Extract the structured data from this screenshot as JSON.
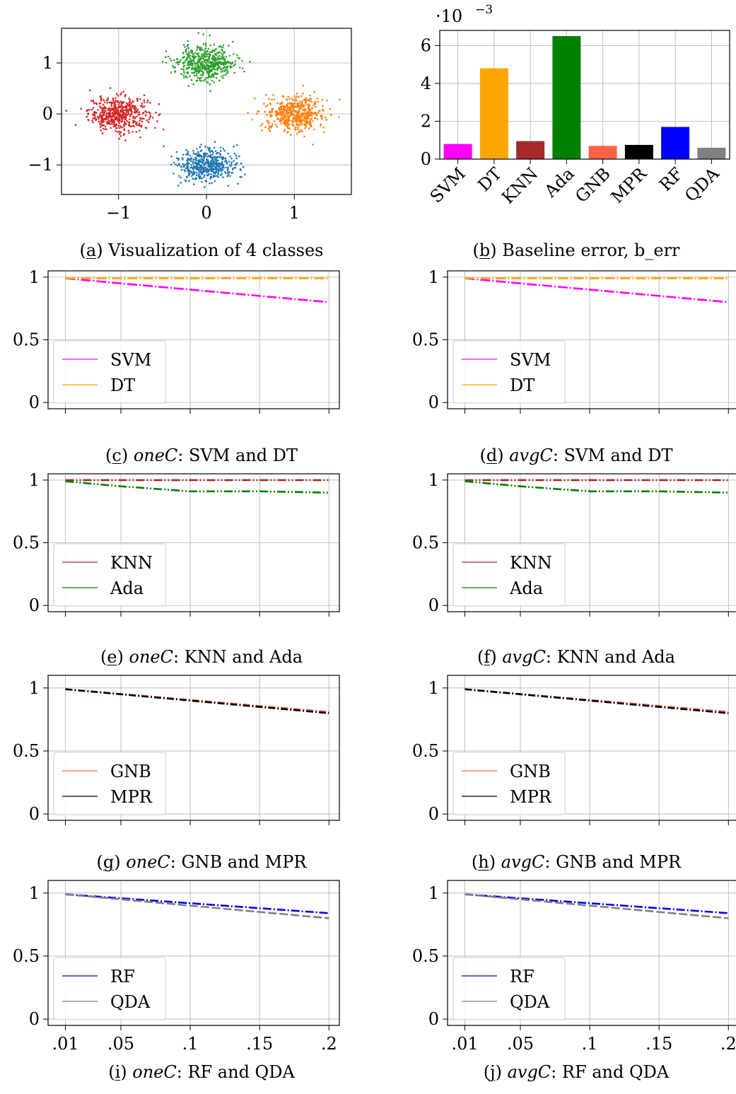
{
  "figure": {
    "captions": [
      {
        "letter": "a",
        "lead": "",
        "rest": "Visualization of 4 classes"
      },
      {
        "letter": "b",
        "lead": "",
        "rest": "Baseline error, b_err"
      },
      {
        "letter": "c",
        "lead": "oneC",
        "rest": ": SVM and DT"
      },
      {
        "letter": "d",
        "lead": "avgC",
        "rest": ": SVM and DT"
      },
      {
        "letter": "e",
        "lead": "oneC",
        "rest": ": KNN and Ada"
      },
      {
        "letter": "f",
        "lead": "avgC",
        "rest": ": KNN and Ada"
      },
      {
        "letter": "g",
        "lead": "oneC",
        "rest": ": GNB and MPR"
      },
      {
        "letter": "h",
        "lead": "avgC",
        "rest": ": GNB and MPR"
      },
      {
        "letter": "i",
        "lead": "oneC",
        "rest": ": RF and QDA"
      },
      {
        "letter": "j",
        "lead": "avgC",
        "rest": ": RF and QDA"
      }
    ]
  },
  "colors": {
    "red": "#d62728",
    "orange": "#ff7f0e",
    "green": "#2ca02c",
    "blue": "#1f77b4",
    "SVM": "#ff00ff",
    "DT": "#ffa500",
    "KNN": "#a52a2a",
    "Ada": "#008000",
    "GNB": "#ff6347",
    "MPR": "#000000",
    "RF": "#0000ff",
    "QDA": "#808080",
    "grid": "#b0b0b0"
  },
  "chart_data": [
    {
      "id": "a",
      "type": "scatter",
      "xlim": [
        -1.65,
        1.65
      ],
      "ylim": [
        -1.58,
        1.68
      ],
      "xticks": [
        {
          "v": -1,
          "label": "−1"
        },
        {
          "v": 0,
          "label": "0"
        },
        {
          "v": 1,
          "label": "1"
        }
      ],
      "yticks": [
        {
          "v": -1,
          "label": "−1"
        },
        {
          "v": 0,
          "label": "0"
        },
        {
          "v": 1,
          "label": "1"
        }
      ],
      "grid": true,
      "clusters": [
        {
          "color": "red",
          "center": [
            -1,
            0
          ],
          "spread": [
            0.17,
            0.17
          ],
          "n": 500
        },
        {
          "color": "orange",
          "center": [
            1,
            0
          ],
          "spread": [
            0.17,
            0.17
          ],
          "n": 500
        },
        {
          "color": "green",
          "center": [
            0,
            1
          ],
          "spread": [
            0.17,
            0.17
          ],
          "n": 500
        },
        {
          "color": "blue",
          "center": [
            0,
            -1
          ],
          "spread": [
            0.17,
            0.17
          ],
          "n": 500
        }
      ]
    },
    {
      "id": "b",
      "type": "bar",
      "scale_label": "·10",
      "scale_exp": "−3",
      "categories": [
        "SVM",
        "DT",
        "KNN",
        "Ada",
        "GNB",
        "MPR",
        "RF",
        "QDA"
      ],
      "values": [
        0.8,
        4.8,
        0.95,
        6.5,
        0.7,
        0.75,
        1.7,
        0.6
      ],
      "ylim": [
        0,
        6.8
      ],
      "yticks": [
        {
          "v": 0,
          "label": "0"
        },
        {
          "v": 2,
          "label": "2"
        },
        {
          "v": 4,
          "label": "4"
        },
        {
          "v": 6,
          "label": "6"
        }
      ],
      "grid": true
    },
    {
      "id": "c",
      "type": "line",
      "xlim": [
        -0.0025,
        0.2075
      ],
      "ylim": [
        -0.05,
        1.05
      ],
      "xticks": [
        {
          "v": 0.01,
          "label": ".01"
        },
        {
          "v": 0.05,
          "label": ".05"
        },
        {
          "v": 0.1,
          "label": ".1"
        },
        {
          "v": 0.15,
          "label": ".15"
        },
        {
          "v": 0.2,
          "label": ".2"
        }
      ],
      "show_xtick_labels": false,
      "yticks": [
        {
          "v": 0,
          "label": "0"
        },
        {
          "v": 0.5,
          "label": "0.5"
        },
        {
          "v": 1,
          "label": "1"
        }
      ],
      "grid": true,
      "legend": "lower-left",
      "x": [
        0.01,
        0.2
      ],
      "series": [
        {
          "name": "SVM",
          "values": [
            0.99,
            0.8
          ]
        },
        {
          "name": "DT",
          "values": [
            0.99,
            0.99
          ]
        }
      ]
    },
    {
      "id": "d",
      "type": "line",
      "xlim": [
        -0.0025,
        0.2075
      ],
      "ylim": [
        -0.05,
        1.05
      ],
      "xticks": [
        {
          "v": 0.01,
          "label": ".01"
        },
        {
          "v": 0.05,
          "label": ".05"
        },
        {
          "v": 0.1,
          "label": ".1"
        },
        {
          "v": 0.15,
          "label": ".15"
        },
        {
          "v": 0.2,
          "label": ".2"
        }
      ],
      "show_xtick_labels": false,
      "yticks": [
        {
          "v": 0,
          "label": "0"
        },
        {
          "v": 0.5,
          "label": "0.5"
        },
        {
          "v": 1,
          "label": "1"
        }
      ],
      "grid": true,
      "legend": "lower-left",
      "x": [
        0.01,
        0.2
      ],
      "series": [
        {
          "name": "SVM",
          "values": [
            0.99,
            0.8
          ]
        },
        {
          "name": "DT",
          "values": [
            0.99,
            0.99
          ]
        }
      ]
    },
    {
      "id": "e",
      "type": "line",
      "xlim": [
        -0.0025,
        0.2075
      ],
      "ylim": [
        -0.05,
        1.05
      ],
      "xticks": [
        {
          "v": 0.01,
          "label": ".01"
        },
        {
          "v": 0.05,
          "label": ".05"
        },
        {
          "v": 0.1,
          "label": ".1"
        },
        {
          "v": 0.15,
          "label": ".15"
        },
        {
          "v": 0.2,
          "label": ".2"
        }
      ],
      "show_xtick_labels": false,
      "yticks": [
        {
          "v": 0,
          "label": "0"
        },
        {
          "v": 0.5,
          "label": "0.5"
        },
        {
          "v": 1,
          "label": "1"
        }
      ],
      "grid": true,
      "legend": "lower-left",
      "x": [
        0.01,
        0.05,
        0.1,
        0.15,
        0.2
      ],
      "series": [
        {
          "name": "KNN",
          "values": [
            1.0,
            1.0,
            1.0,
            1.0,
            1.0
          ]
        },
        {
          "name": "Ada",
          "values": [
            0.99,
            0.95,
            0.91,
            0.91,
            0.9
          ]
        }
      ]
    },
    {
      "id": "f",
      "type": "line",
      "xlim": [
        -0.0025,
        0.2075
      ],
      "ylim": [
        -0.05,
        1.05
      ],
      "xticks": [
        {
          "v": 0.01,
          "label": ".01"
        },
        {
          "v": 0.05,
          "label": ".05"
        },
        {
          "v": 0.1,
          "label": ".1"
        },
        {
          "v": 0.15,
          "label": ".15"
        },
        {
          "v": 0.2,
          "label": ".2"
        }
      ],
      "show_xtick_labels": false,
      "yticks": [
        {
          "v": 0,
          "label": "0"
        },
        {
          "v": 0.5,
          "label": "0.5"
        },
        {
          "v": 1,
          "label": "1"
        }
      ],
      "grid": true,
      "legend": "lower-left",
      "x": [
        0.01,
        0.05,
        0.1,
        0.15,
        0.2
      ],
      "series": [
        {
          "name": "KNN",
          "values": [
            1.0,
            1.0,
            1.0,
            1.0,
            1.0
          ]
        },
        {
          "name": "Ada",
          "values": [
            0.99,
            0.95,
            0.91,
            0.91,
            0.9
          ]
        }
      ]
    },
    {
      "id": "g",
      "type": "line",
      "xlim": [
        -0.0025,
        0.2075
      ],
      "ylim": [
        -0.05,
        1.1
      ],
      "xticks": [
        {
          "v": 0.01,
          "label": ".01"
        },
        {
          "v": 0.05,
          "label": ".05"
        },
        {
          "v": 0.1,
          "label": ".1"
        },
        {
          "v": 0.15,
          "label": ".15"
        },
        {
          "v": 0.2,
          "label": ".2"
        }
      ],
      "show_xtick_labels": false,
      "yticks": [
        {
          "v": 0,
          "label": "0"
        },
        {
          "v": 0.5,
          "label": "0.5"
        },
        {
          "v": 1,
          "label": "1"
        }
      ],
      "grid": true,
      "legend": "lower-left",
      "x": [
        0.01,
        0.2
      ],
      "series": [
        {
          "name": "GNB",
          "values": [
            0.99,
            0.81
          ]
        },
        {
          "name": "MPR",
          "values": [
            0.99,
            0.8
          ]
        }
      ]
    },
    {
      "id": "h",
      "type": "line",
      "xlim": [
        -0.0025,
        0.2075
      ],
      "ylim": [
        -0.05,
        1.1
      ],
      "xticks": [
        {
          "v": 0.01,
          "label": ".01"
        },
        {
          "v": 0.05,
          "label": ".05"
        },
        {
          "v": 0.1,
          "label": ".1"
        },
        {
          "v": 0.15,
          "label": ".15"
        },
        {
          "v": 0.2,
          "label": ".2"
        }
      ],
      "show_xtick_labels": false,
      "yticks": [
        {
          "v": 0,
          "label": "0"
        },
        {
          "v": 0.5,
          "label": "0.5"
        },
        {
          "v": 1,
          "label": "1"
        }
      ],
      "grid": true,
      "legend": "lower-left",
      "x": [
        0.01,
        0.2
      ],
      "series": [
        {
          "name": "GNB",
          "values": [
            0.99,
            0.81
          ]
        },
        {
          "name": "MPR",
          "values": [
            0.99,
            0.8
          ]
        }
      ]
    },
    {
      "id": "i",
      "type": "line",
      "xlim": [
        -0.0025,
        0.2075
      ],
      "ylim": [
        -0.05,
        1.1
      ],
      "xticks": [
        {
          "v": 0.01,
          "label": ".01"
        },
        {
          "v": 0.05,
          "label": ".05"
        },
        {
          "v": 0.1,
          "label": ".1"
        },
        {
          "v": 0.15,
          "label": ".15"
        },
        {
          "v": 0.2,
          "label": ".2"
        }
      ],
      "show_xtick_labels": true,
      "yticks": [
        {
          "v": 0,
          "label": "0"
        },
        {
          "v": 0.5,
          "label": "0.5"
        },
        {
          "v": 1,
          "label": "1"
        }
      ],
      "grid": true,
      "legend": "lower-left",
      "x": [
        0.01,
        0.2
      ],
      "series": [
        {
          "name": "RF",
          "values": [
            0.99,
            0.84
          ]
        },
        {
          "name": "QDA",
          "values": [
            0.99,
            0.8
          ]
        }
      ]
    },
    {
      "id": "j",
      "type": "line",
      "xlim": [
        -0.0025,
        0.2075
      ],
      "ylim": [
        -0.05,
        1.1
      ],
      "xticks": [
        {
          "v": 0.01,
          "label": ".01"
        },
        {
          "v": 0.05,
          "label": ".05"
        },
        {
          "v": 0.1,
          "label": ".1"
        },
        {
          "v": 0.15,
          "label": ".15"
        },
        {
          "v": 0.2,
          "label": ".2"
        }
      ],
      "show_xtick_labels": true,
      "yticks": [
        {
          "v": 0,
          "label": "0"
        },
        {
          "v": 0.5,
          "label": "0.5"
        },
        {
          "v": 1,
          "label": "1"
        }
      ],
      "grid": true,
      "legend": "lower-left",
      "x": [
        0.01,
        0.2
      ],
      "series": [
        {
          "name": "RF",
          "values": [
            0.99,
            0.84
          ]
        },
        {
          "name": "QDA",
          "values": [
            0.99,
            0.8
          ]
        }
      ]
    }
  ]
}
